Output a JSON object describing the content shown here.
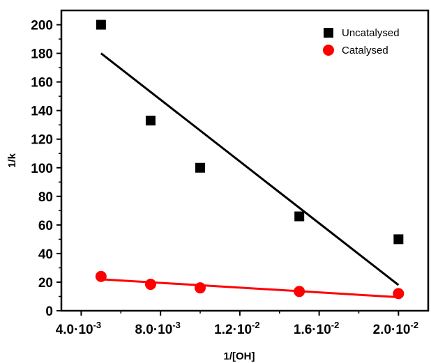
{
  "chart_data": {
    "type": "scatter",
    "xlabel": "1/[OH]",
    "ylabel": "1/k",
    "xlim": [
      0.003,
      0.0215
    ],
    "ylim": [
      0,
      210
    ],
    "x_ticks": [
      {
        "value": 0.004,
        "mant": "4.0",
        "exp": "-3"
      },
      {
        "value": 0.008,
        "mant": "8.0",
        "exp": "-3"
      },
      {
        "value": 0.012,
        "mant": "1.2",
        "exp": "-2"
      },
      {
        "value": 0.016,
        "mant": "1.6",
        "exp": "-2"
      },
      {
        "value": 0.02,
        "mant": "2.0",
        "exp": "-2"
      }
    ],
    "y_ticks": [
      0,
      20,
      40,
      60,
      80,
      100,
      120,
      140,
      160,
      180,
      200
    ],
    "legend_position": "top-right",
    "series": [
      {
        "name": "Uncatalysed",
        "marker": "square",
        "color": "#000000",
        "points": [
          {
            "x": 0.005,
            "y": 200
          },
          {
            "x": 0.0075,
            "y": 133
          },
          {
            "x": 0.01,
            "y": 100
          },
          {
            "x": 0.015,
            "y": 66
          },
          {
            "x": 0.02,
            "y": 50
          }
        ],
        "fit_line": [
          {
            "x": 0.005,
            "y": 180
          },
          {
            "x": 0.02,
            "y": 18
          }
        ]
      },
      {
        "name": "Catalysed",
        "marker": "circle",
        "color": "#ff0000",
        "points": [
          {
            "x": 0.005,
            "y": 24
          },
          {
            "x": 0.0075,
            "y": 18.5
          },
          {
            "x": 0.01,
            "y": 16
          },
          {
            "x": 0.015,
            "y": 13.5
          },
          {
            "x": 0.02,
            "y": 12
          }
        ],
        "fit_line": [
          {
            "x": 0.005,
            "y": 22
          },
          {
            "x": 0.02,
            "y": 9.5
          }
        ]
      }
    ]
  }
}
